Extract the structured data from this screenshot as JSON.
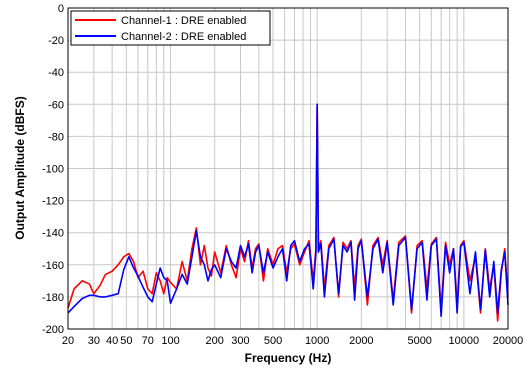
{
  "chart_data": {
    "type": "line",
    "title": "",
    "xlabel": "Frequency (Hz)",
    "ylabel": "Output Amplitude (dBFS)",
    "x_scale": "log",
    "xlim": [
      20,
      20000
    ],
    "ylim": [
      -200,
      0
    ],
    "grid": true,
    "legend_position": "top-left",
    "x_ticks": [
      {
        "value": 20,
        "label": "20"
      },
      {
        "value": 30,
        "label": "30"
      },
      {
        "value": 40,
        "label": "40"
      },
      {
        "value": 50,
        "label": "50"
      },
      {
        "value": 70,
        "label": "70"
      },
      {
        "value": 100,
        "label": "100"
      },
      {
        "value": 200,
        "label": "200"
      },
      {
        "value": 300,
        "label": "300"
      },
      {
        "value": 500,
        "label": "500"
      },
      {
        "value": 1000,
        "label": "1000"
      },
      {
        "value": 2000,
        "label": "2000"
      },
      {
        "value": 5000,
        "label": "5000"
      },
      {
        "value": 10000,
        "label": "10000"
      },
      {
        "value": 20000,
        "label": "20000"
      }
    ],
    "y_ticks": [
      0,
      -20,
      -40,
      -60,
      -80,
      -100,
      -120,
      -140,
      -160,
      -180,
      -200
    ],
    "series": [
      {
        "name": "Channel-1 : DRE enabled",
        "color": "#ff0000",
        "x": [
          20,
          22,
          25,
          28,
          30,
          33,
          36,
          40,
          44,
          48,
          52,
          56,
          60,
          65,
          70,
          75,
          80,
          85,
          90,
          95,
          100,
          110,
          120,
          130,
          140,
          150,
          160,
          170,
          180,
          190,
          200,
          220,
          240,
          260,
          280,
          300,
          320,
          340,
          360,
          380,
          400,
          430,
          460,
          500,
          540,
          580,
          620,
          660,
          700,
          760,
          820,
          880,
          940,
          980,
          1000,
          1020,
          1060,
          1120,
          1200,
          1300,
          1400,
          1500,
          1600,
          1700,
          1800,
          1900,
          2000,
          2200,
          2400,
          2600,
          2800,
          3000,
          3300,
          3600,
          4000,
          4400,
          4800,
          5200,
          5600,
          6000,
          6500,
          7000,
          7500,
          8000,
          8500,
          9000,
          9500,
          10000,
          11000,
          12000,
          13000,
          14000,
          15000,
          16000,
          17000,
          18000,
          19000,
          20000
        ],
        "values": [
          -187,
          -175,
          -170,
          -172,
          -178,
          -173,
          -166,
          -164,
          -160,
          -155,
          -153,
          -158,
          -168,
          -164,
          -175,
          -178,
          -165,
          -170,
          -178,
          -168,
          -171,
          -175,
          -158,
          -170,
          -150,
          -137,
          -160,
          -148,
          -162,
          -167,
          -152,
          -165,
          -148,
          -160,
          -168,
          -150,
          -158,
          -145,
          -162,
          -150,
          -147,
          -170,
          -150,
          -160,
          -150,
          -148,
          -165,
          -150,
          -147,
          -160,
          -152,
          -145,
          -170,
          -150,
          -60,
          -150,
          -145,
          -175,
          -148,
          -143,
          -180,
          -146,
          -150,
          -145,
          -175,
          -148,
          -144,
          -185,
          -148,
          -143,
          -160,
          -145,
          -182,
          -146,
          -142,
          -190,
          -148,
          -145,
          -175,
          -147,
          -143,
          -188,
          -146,
          -160,
          -150,
          -185,
          -148,
          -145,
          -170,
          -155,
          -190,
          -150,
          -175,
          -160,
          -195,
          -165,
          -150,
          -180
        ]
      },
      {
        "name": "Channel-2 : DRE enabled",
        "color": "#0000ff",
        "x": [
          20,
          22,
          25,
          28,
          30,
          33,
          36,
          40,
          44,
          48,
          52,
          56,
          60,
          65,
          70,
          75,
          80,
          85,
          90,
          95,
          100,
          110,
          120,
          130,
          140,
          150,
          160,
          170,
          180,
          190,
          200,
          220,
          240,
          260,
          280,
          300,
          320,
          340,
          360,
          380,
          400,
          430,
          460,
          500,
          540,
          580,
          620,
          660,
          700,
          760,
          820,
          880,
          940,
          980,
          1000,
          1020,
          1060,
          1120,
          1200,
          1300,
          1400,
          1500,
          1600,
          1700,
          1800,
          1900,
          2000,
          2200,
          2400,
          2600,
          2800,
          3000,
          3300,
          3600,
          4000,
          4400,
          4800,
          5200,
          5600,
          6000,
          6500,
          7000,
          7500,
          8000,
          8500,
          9000,
          9500,
          10000,
          11000,
          12000,
          13000,
          14000,
          15000,
          16000,
          17000,
          18000,
          19000,
          20000
        ],
        "values": [
          -190,
          -186,
          -181,
          -179,
          -179,
          -180,
          -180,
          -179,
          -178,
          -163,
          -155,
          -162,
          -167,
          -174,
          -180,
          -183,
          -172,
          -162,
          -168,
          -170,
          -184,
          -175,
          -166,
          -172,
          -155,
          -139,
          -155,
          -160,
          -170,
          -163,
          -160,
          -168,
          -150,
          -158,
          -162,
          -148,
          -155,
          -147,
          -165,
          -152,
          -148,
          -165,
          -152,
          -162,
          -155,
          -150,
          -170,
          -148,
          -145,
          -158,
          -150,
          -147,
          -175,
          -152,
          -60,
          -152,
          -147,
          -180,
          -150,
          -144,
          -178,
          -148,
          -152,
          -146,
          -182,
          -150,
          -145,
          -180,
          -150,
          -144,
          -165,
          -146,
          -185,
          -148,
          -143,
          -188,
          -150,
          -146,
          -182,
          -148,
          -144,
          -192,
          -148,
          -165,
          -150,
          -190,
          -149,
          -146,
          -178,
          -152,
          -188,
          -151,
          -180,
          -158,
          -190,
          -163,
          -152,
          -185
        ]
      }
    ]
  }
}
